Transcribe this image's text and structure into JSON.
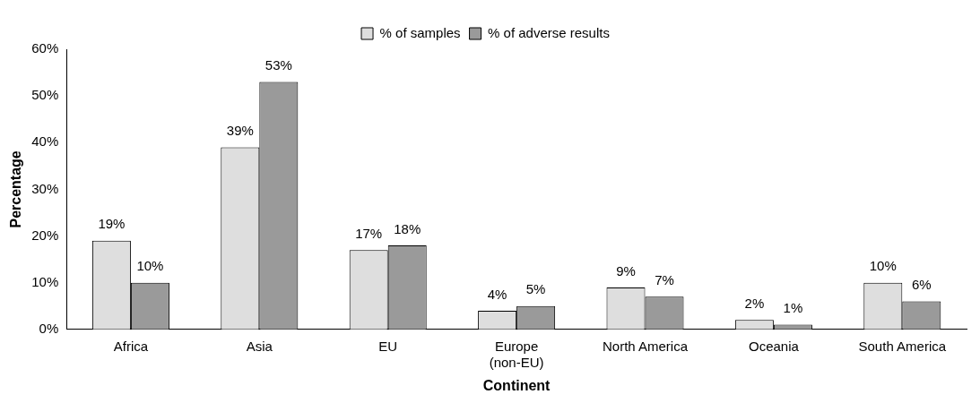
{
  "chart_data": {
    "type": "bar",
    "xlabel": "Continent",
    "ylabel": "Percentage",
    "categories": [
      "Africa",
      "Asia",
      "EU",
      "Europe (non-EU)",
      "North America",
      "Oceania",
      "South America"
    ],
    "series": [
      {
        "name": "% of samples",
        "color": "#dedede",
        "values": [
          19,
          39,
          17,
          4,
          9,
          2,
          10
        ],
        "value_labels": [
          "19%",
          "39%",
          "17%",
          "4%",
          "9%",
          "2%",
          "10%"
        ]
      },
      {
        "name": "% of adverse results",
        "color": "#9a9a9a",
        "values": [
          10,
          53,
          18,
          5,
          7,
          1,
          6
        ],
        "value_labels": [
          "10%",
          "53%",
          "18%",
          "5%",
          "7%",
          "1%",
          "6%"
        ]
      }
    ],
    "ylim": [
      0,
      60
    ],
    "yticks": [
      {
        "value": 0,
        "label": "0%"
      },
      {
        "value": 10,
        "label": "10%"
      },
      {
        "value": 20,
        "label": "20%"
      },
      {
        "value": 30,
        "label": "30%"
      },
      {
        "value": 40,
        "label": "40%"
      },
      {
        "value": 50,
        "label": "50%"
      },
      {
        "value": 60,
        "label": "60%"
      }
    ],
    "grid": false,
    "legend": "top"
  }
}
